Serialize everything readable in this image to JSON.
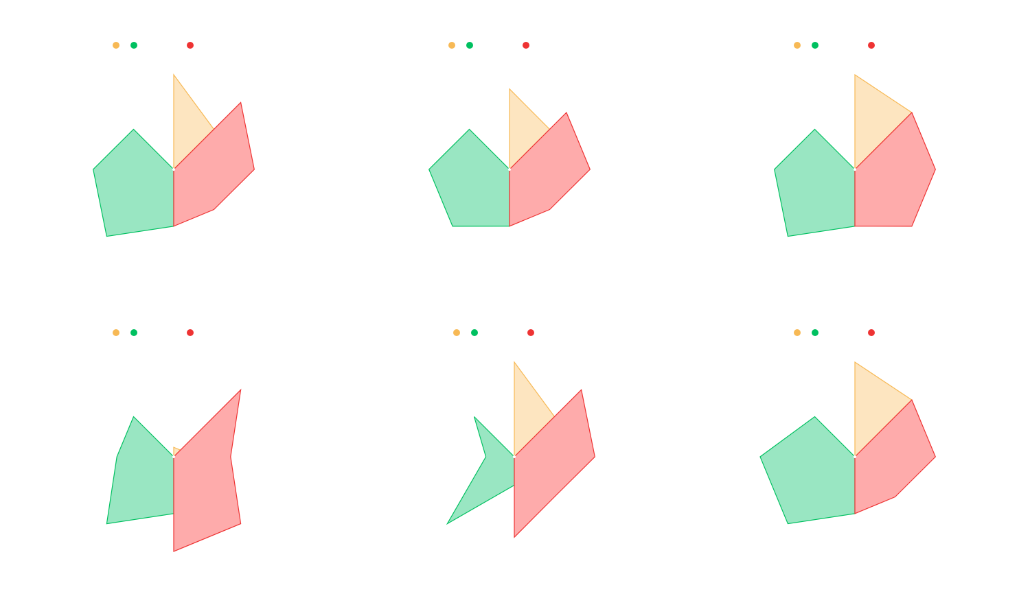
{
  "colors": {
    "orange": "#f7b955",
    "green": "#00c060",
    "red": "#ee3333",
    "orange_fill": "#fde5c0",
    "green_fill": "#99e6c2",
    "red_fill": "#feabab"
  },
  "chart_data": [
    {
      "type": "radar",
      "axes": 8,
      "grid": false,
      "legend_placement": "top",
      "series": [
        {
          "color": "orange",
          "values": [
            1.0,
            0.6,
            0,
            0,
            0,
            0,
            0,
            0
          ]
        },
        {
          "color": "green",
          "values": [
            0,
            0,
            0,
            0,
            0.6,
            1.0,
            0.85,
            0.6
          ]
        },
        {
          "color": "red",
          "values": [
            0,
            1.0,
            0.85,
            0.6,
            0.6,
            0,
            0,
            0
          ]
        }
      ]
    },
    {
      "type": "radar",
      "axes": 8,
      "grid": false,
      "legend_placement": "top",
      "series": [
        {
          "color": "orange",
          "values": [
            0.85,
            0.6,
            0,
            0,
            0,
            0,
            0,
            0
          ]
        },
        {
          "color": "green",
          "values": [
            0,
            0,
            0,
            0,
            0.6,
            0.85,
            0.85,
            0.6
          ]
        },
        {
          "color": "red",
          "values": [
            0,
            0.85,
            0.85,
            0.6,
            0.6,
            0,
            0,
            0
          ]
        }
      ]
    },
    {
      "type": "radar",
      "axes": 8,
      "grid": false,
      "legend_placement": "top",
      "series": [
        {
          "color": "orange",
          "values": [
            1.0,
            0.85,
            0,
            0,
            0,
            0,
            0,
            0
          ]
        },
        {
          "color": "green",
          "values": [
            0,
            0,
            0,
            0,
            0.6,
            1.0,
            0.85,
            0.6
          ]
        },
        {
          "color": "red",
          "values": [
            0,
            0.85,
            0.85,
            0.85,
            0.6,
            0,
            0,
            0
          ]
        }
      ]
    },
    {
      "type": "radar",
      "axes": 8,
      "grid": false,
      "legend_placement": "top",
      "series": [
        {
          "color": "orange",
          "values": [
            0.1,
            0.1,
            0,
            0,
            0,
            0,
            0,
            0
          ]
        },
        {
          "color": "green",
          "values": [
            0,
            0,
            0,
            0,
            0.6,
            1.0,
            0.6,
            0.6
          ]
        },
        {
          "color": "red",
          "values": [
            0,
            1.0,
            0.6,
            1.0,
            1.0,
            0,
            0,
            0
          ]
        }
      ]
    },
    {
      "type": "radar",
      "axes": 8,
      "grid": false,
      "legend_placement": "top",
      "series": [
        {
          "color": "orange",
          "values": [
            1.0,
            0.6,
            0,
            0,
            0,
            0,
            0,
            0
          ]
        },
        {
          "color": "green",
          "values": [
            0,
            0,
            0,
            0,
            0.3,
            1.0,
            0.3,
            0.6
          ]
        },
        {
          "color": "red",
          "values": [
            0,
            1.0,
            0.85,
            0.6,
            0.85,
            0,
            0,
            0
          ]
        }
      ]
    },
    {
      "type": "radar",
      "axes": 8,
      "grid": false,
      "legend_placement": "top",
      "series": [
        {
          "color": "orange",
          "values": [
            1.0,
            0.85,
            0,
            0,
            0,
            0,
            0,
            0
          ]
        },
        {
          "color": "green",
          "values": [
            0,
            0,
            0,
            0,
            0.6,
            1.0,
            1.0,
            0.6
          ]
        },
        {
          "color": "red",
          "values": [
            0,
            0.85,
            0.85,
            0.6,
            0.6,
            0,
            0,
            0
          ]
        }
      ]
    }
  ]
}
